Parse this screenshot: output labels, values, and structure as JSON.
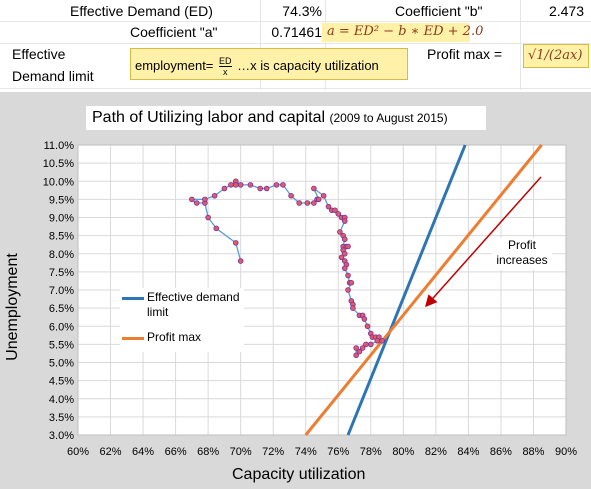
{
  "sheet": {
    "ed_label": "Effective Demand (ED)",
    "ed_value": "74.3%",
    "coef_b_label": "Coefficient \"b\"",
    "coef_b_value": "2.473",
    "coef_a_label": "Coefficient \"a\"",
    "coef_a_value": "0.71461",
    "formula_a": "a = ED² − b ∗ ED + 2.0",
    "ed_limit_label_1": "Effective",
    "ed_limit_label_2": "Demand limit",
    "employment_formula_prefix": "employment=",
    "employment_frac_num": "ED",
    "employment_frac_den": "x",
    "employment_formula_suffix": " …x is capacity utilization",
    "profit_max_label": "Profit max =",
    "profit_max_formula": "√1/(2ax)"
  },
  "chart_data": {
    "type": "scatter",
    "title": "Path of Utilizing labor and capital",
    "subtitle": "(2009 to August 2015)",
    "xlabel": "Capacity utilization",
    "ylabel": "Unemployment",
    "xlim": [
      0.6,
      0.9
    ],
    "ylim": [
      0.03,
      0.11
    ],
    "x_ticks": [
      "60%",
      "62%",
      "64%",
      "66%",
      "68%",
      "70%",
      "72%",
      "74%",
      "76%",
      "78%",
      "80%",
      "82%",
      "84%",
      "86%",
      "88%",
      "90%"
    ],
    "y_ticks": [
      "3.0%",
      "3.5%",
      "4.0%",
      "4.5%",
      "5.0%",
      "5.5%",
      "6.0%",
      "6.5%",
      "7.0%",
      "7.5%",
      "8.0%",
      "8.5%",
      "9.0%",
      "9.5%",
      "10.0%",
      "10.5%",
      "11.0%"
    ],
    "path_color": "#5b9bd5",
    "marker_color": "#e05a6a",
    "path": [
      [
        0.7,
        0.078
      ],
      [
        0.697,
        0.083
      ],
      [
        0.685,
        0.087
      ],
      [
        0.68,
        0.09
      ],
      [
        0.678,
        0.094
      ],
      [
        0.673,
        0.094
      ],
      [
        0.67,
        0.095
      ],
      [
        0.678,
        0.095
      ],
      [
        0.684,
        0.096
      ],
      [
        0.69,
        0.098
      ],
      [
        0.694,
        0.099
      ],
      [
        0.697,
        0.1
      ],
      [
        0.7,
        0.099
      ],
      [
        0.697,
        0.099
      ],
      [
        0.706,
        0.099
      ],
      [
        0.712,
        0.098
      ],
      [
        0.716,
        0.098
      ],
      [
        0.722,
        0.099
      ],
      [
        0.726,
        0.099
      ],
      [
        0.731,
        0.096
      ],
      [
        0.736,
        0.094
      ],
      [
        0.741,
        0.094
      ],
      [
        0.745,
        0.094
      ],
      [
        0.747,
        0.095
      ],
      [
        0.748,
        0.095
      ],
      [
        0.745,
        0.098
      ],
      [
        0.751,
        0.096
      ],
      [
        0.754,
        0.093
      ],
      [
        0.756,
        0.092
      ],
      [
        0.758,
        0.092
      ],
      [
        0.76,
        0.091
      ],
      [
        0.762,
        0.09
      ],
      [
        0.764,
        0.09
      ],
      [
        0.764,
        0.089
      ],
      [
        0.761,
        0.086
      ],
      [
        0.763,
        0.085
      ],
      [
        0.764,
        0.084
      ],
      [
        0.763,
        0.082
      ],
      [
        0.765,
        0.082
      ],
      [
        0.766,
        0.082
      ],
      [
        0.763,
        0.081
      ],
      [
        0.764,
        0.08
      ],
      [
        0.762,
        0.079
      ],
      [
        0.764,
        0.078
      ],
      [
        0.765,
        0.077
      ],
      [
        0.764,
        0.076
      ],
      [
        0.766,
        0.074
      ],
      [
        0.767,
        0.072
      ],
      [
        0.768,
        0.072
      ],
      [
        0.766,
        0.07
      ],
      [
        0.768,
        0.067
      ],
      [
        0.769,
        0.066
      ],
      [
        0.769,
        0.065
      ],
      [
        0.773,
        0.063
      ],
      [
        0.775,
        0.063
      ],
      [
        0.776,
        0.062
      ],
      [
        0.778,
        0.06
      ],
      [
        0.78,
        0.058
      ],
      [
        0.781,
        0.057
      ],
      [
        0.783,
        0.057
      ],
      [
        0.785,
        0.057
      ],
      [
        0.787,
        0.056
      ],
      [
        0.784,
        0.056
      ],
      [
        0.78,
        0.055
      ],
      [
        0.777,
        0.055
      ],
      [
        0.775,
        0.054
      ],
      [
        0.773,
        0.053
      ],
      [
        0.771,
        0.052
      ],
      [
        0.771,
        0.054
      ]
    ],
    "series": [
      {
        "name": "Effective demand limit",
        "color": "#2e75b6",
        "points": [
          [
            0.766,
            0.03
          ],
          [
            0.838,
            0.11
          ]
        ]
      },
      {
        "name": "Profit max",
        "color": "#ed7d31",
        "points": [
          [
            0.74,
            0.03
          ],
          [
            0.885,
            0.11
          ]
        ]
      }
    ],
    "annotation": {
      "text_1": "Profit",
      "text_2": "increases",
      "arrow_color": "#c00000"
    },
    "legend_position": "left"
  }
}
